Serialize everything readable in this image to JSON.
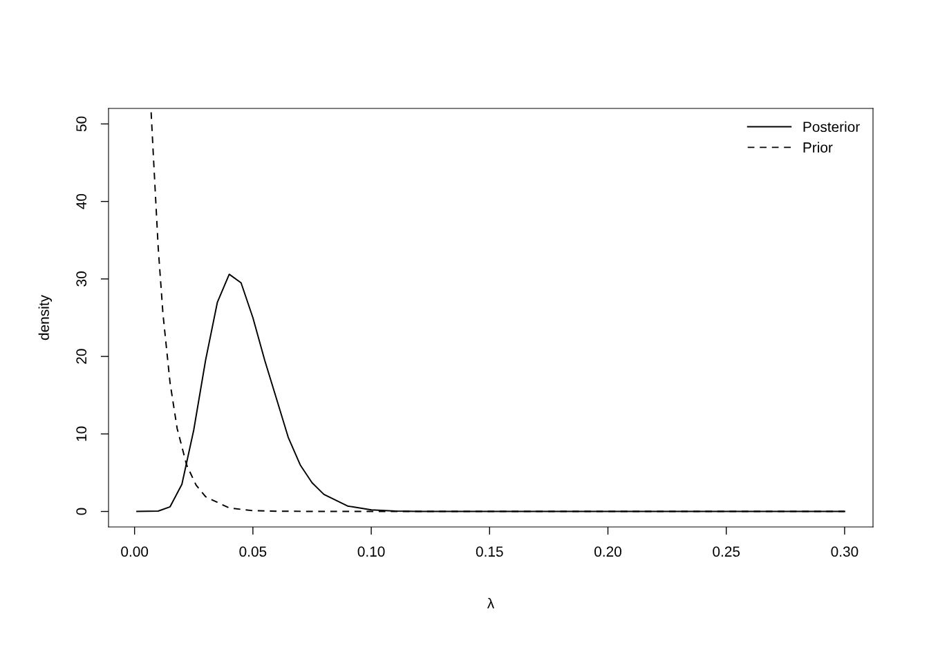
{
  "chart_data": {
    "type": "line",
    "xlabel": "λ",
    "ylabel": "density",
    "xlim": [
      -0.011,
      0.312
    ],
    "ylim": [
      -2,
      52
    ],
    "xticks": [
      {
        "value": 0.0,
        "label": "0.00"
      },
      {
        "value": 0.05,
        "label": "0.05"
      },
      {
        "value": 0.1,
        "label": "0.10"
      },
      {
        "value": 0.15,
        "label": "0.15"
      },
      {
        "value": 0.2,
        "label": "0.20"
      },
      {
        "value": 0.25,
        "label": "0.25"
      },
      {
        "value": 0.3,
        "label": "0.30"
      }
    ],
    "yticks": [
      0,
      10,
      20,
      30,
      40,
      50
    ],
    "grid": false,
    "legend": "top right",
    "series": [
      {
        "name": "Posterior",
        "color": "#000000",
        "line_style": "solid",
        "x": [
          0.001,
          0.01,
          0.015,
          0.02,
          0.025,
          0.03,
          0.035,
          0.04,
          0.045,
          0.05,
          0.055,
          0.06,
          0.065,
          0.07,
          0.075,
          0.08,
          0.09,
          0.1,
          0.11,
          0.12,
          0.3
        ],
        "values": [
          0,
          0.05,
          0.6,
          3.5,
          10.5,
          19.5,
          27,
          30.6,
          29.5,
          25,
          19.5,
          14.5,
          9.5,
          6,
          3.7,
          2.2,
          0.7,
          0.2,
          0.05,
          0,
          0
        ]
      },
      {
        "name": "Prior",
        "color": "#000000",
        "line_style": "dashed",
        "x": [
          0.007,
          0.008,
          0.01,
          0.012,
          0.015,
          0.018,
          0.022,
          0.026,
          0.03,
          0.04,
          0.05,
          0.06,
          0.08,
          0.3
        ],
        "values": [
          51.5,
          45.6,
          34,
          25.5,
          16.6,
          10.7,
          6,
          3.4,
          1.9,
          0.45,
          0.1,
          0.03,
          0,
          0
        ]
      }
    ]
  }
}
